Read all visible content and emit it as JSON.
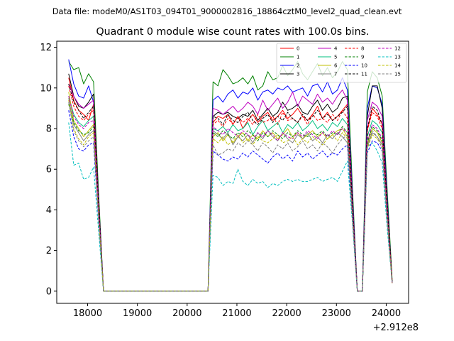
{
  "figure": {
    "suptitle": "Data file: modeM0/AS1T03_094T01_9000002816_18864cztM0_level2_quad_clean.evt",
    "offset_label": "+2.912e8"
  },
  "chart_data": {
    "type": "line",
    "title": "Quadrant 0 module wise count rates with 100.0s bins.",
    "xlabel": "",
    "ylabel": "",
    "x_offset": 291200000,
    "xlim": [
      17380,
      24450
    ],
    "ylim": [
      -0.6,
      12.3
    ],
    "xticks": [
      18000,
      19000,
      20000,
      21000,
      22000,
      23000,
      24000
    ],
    "xtick_labels": [
      "18000",
      "19000",
      "20000",
      "21000",
      "22000",
      "23000",
      "24000"
    ],
    "yticks": [
      0,
      2,
      4,
      6,
      8,
      10,
      12
    ],
    "ytick_labels": [
      "0",
      "2",
      "4",
      "6",
      "8",
      "10",
      "12"
    ],
    "grid": false,
    "legend_placement": "top-right",
    "x": [
      17620,
      17720,
      17820,
      17920,
      18020,
      18120,
      18220,
      18320,
      18420,
      18520,
      18620,
      18720,
      18820,
      18920,
      19020,
      19120,
      19220,
      19320,
      19420,
      19520,
      19620,
      19720,
      19820,
      19920,
      20020,
      20120,
      20220,
      20320,
      20420,
      20520,
      20620,
      20720,
      20820,
      20920,
      21020,
      21120,
      21220,
      21320,
      21420,
      21520,
      21620,
      21720,
      21820,
      21920,
      22020,
      22120,
      22220,
      22320,
      22420,
      22520,
      22620,
      22720,
      22820,
      22920,
      23020,
      23120,
      23220,
      23320,
      23420,
      23520,
      23620,
      23720,
      23820,
      23920,
      24020,
      24120
    ],
    "series": [
      {
        "name": "0",
        "color": "#ff0000",
        "dash": "solid",
        "values": [
          10.5,
          9.4,
          8.9,
          8.7,
          8.4,
          9.2,
          4.2,
          0,
          0,
          0,
          0,
          0,
          0,
          0,
          0,
          0,
          0,
          0,
          0,
          0,
          0,
          0,
          0,
          0,
          0,
          0,
          0,
          0,
          0,
          8.3,
          8.6,
          8.5,
          8.7,
          8.2,
          8.6,
          8.0,
          8.4,
          8.7,
          8.3,
          8.6,
          8.8,
          8.4,
          8.6,
          8.9,
          8.5,
          8.7,
          9.0,
          8.6,
          8.4,
          8.7,
          9.1,
          8.5,
          8.8,
          8.4,
          8.6,
          8.9,
          9.2,
          4.5,
          0,
          0,
          7.9,
          9.0,
          8.7,
          8.2,
          4.3,
          0.5
        ]
      },
      {
        "name": "1",
        "color": "#008000",
        "dash": "solid",
        "values": [
          11.3,
          10.9,
          11.0,
          10.2,
          10.7,
          10.3,
          4.9,
          0,
          0,
          0,
          0,
          0,
          0,
          0,
          0,
          0,
          0,
          0,
          0,
          0,
          0,
          0,
          0,
          0,
          0,
          0,
          0,
          0,
          0,
          10.3,
          10.1,
          10.9,
          10.6,
          10.2,
          10.3,
          10.5,
          10.2,
          10.6,
          9.9,
          10.1,
          10.8,
          10.4,
          10.5,
          11.1,
          10.6,
          10.9,
          11.3,
          10.7,
          10.4,
          10.8,
          11.2,
          10.6,
          11.0,
          10.5,
          10.8,
          11.3,
          10.9,
          5.2,
          0,
          0,
          9.8,
          10.8,
          10.5,
          9.6,
          5.0,
          0.6
        ]
      },
      {
        "name": "2",
        "color": "#0000ff",
        "dash": "solid",
        "values": [
          11.4,
          10.2,
          9.6,
          9.5,
          10.1,
          9.3,
          4.5,
          0,
          0,
          0,
          0,
          0,
          0,
          0,
          0,
          0,
          0,
          0,
          0,
          0,
          0,
          0,
          0,
          0,
          0,
          0,
          0,
          0,
          0,
          9.4,
          9.6,
          9.3,
          9.7,
          9.9,
          9.5,
          9.8,
          9.7,
          10.0,
          9.4,
          9.8,
          9.9,
          9.7,
          10.0,
          9.9,
          10.1,
          9.8,
          9.9,
          10.0,
          9.6,
          10.1,
          10.2,
          9.8,
          10.3,
          9.7,
          9.9,
          10.5,
          9.9,
          4.8,
          0,
          0,
          9.0,
          10.1,
          10.0,
          9.2,
          4.6,
          0.4
        ]
      },
      {
        "name": "3",
        "color": "#000000",
        "dash": "solid",
        "values": [
          10.7,
          9.6,
          9.1,
          9.0,
          9.3,
          9.7,
          4.6,
          0,
          0,
          0,
          0,
          0,
          0,
          0,
          0,
          0,
          0,
          0,
          0,
          0,
          0,
          0,
          0,
          0,
          0,
          0,
          0,
          0,
          0,
          8.6,
          8.8,
          8.7,
          8.8,
          8.6,
          8.5,
          8.7,
          8.6,
          8.9,
          8.4,
          8.7,
          9.0,
          8.6,
          8.8,
          9.3,
          8.9,
          9.0,
          9.2,
          8.8,
          8.7,
          9.1,
          9.4,
          8.9,
          9.2,
          8.8,
          9.0,
          9.5,
          9.6,
          4.6,
          0,
          0,
          8.6,
          10.1,
          10.1,
          9.0,
          4.4,
          0.5
        ]
      },
      {
        "name": "4",
        "color": "#bf00bf",
        "dash": "solid",
        "values": [
          10.2,
          9.6,
          9.2,
          9.0,
          9.2,
          9.4,
          4.4,
          0,
          0,
          0,
          0,
          0,
          0,
          0,
          0,
          0,
          0,
          0,
          0,
          0,
          0,
          0,
          0,
          0,
          0,
          0,
          0,
          0,
          0,
          9.0,
          8.9,
          8.7,
          8.9,
          9.1,
          8.8,
          9.0,
          9.3,
          9.1,
          8.7,
          9.4,
          8.9,
          9.2,
          9.5,
          9.0,
          9.3,
          9.8,
          9.1,
          9.6,
          9.4,
          9.2,
          9.7,
          9.3,
          9.5,
          9.2,
          9.6,
          9.9,
          9.4,
          4.6,
          0,
          0,
          8.4,
          9.3,
          9.1,
          8.6,
          4.3,
          0.4
        ]
      },
      {
        "name": "5",
        "color": "#00bf7f",
        "dash": "solid",
        "values": [
          9.6,
          8.7,
          8.3,
          8.1,
          8.4,
          8.6,
          4.1,
          0,
          0,
          0,
          0,
          0,
          0,
          0,
          0,
          0,
          0,
          0,
          0,
          0,
          0,
          0,
          0,
          0,
          0,
          0,
          0,
          0,
          0,
          8.0,
          7.9,
          8.1,
          7.8,
          8.2,
          7.9,
          8.0,
          8.3,
          7.7,
          8.1,
          8.4,
          7.9,
          8.1,
          8.3,
          7.8,
          8.2,
          8.0,
          8.3,
          7.9,
          8.1,
          8.4,
          8.0,
          8.2,
          7.9,
          8.3,
          8.1,
          8.5,
          8.2,
          4.1,
          0,
          0,
          7.6,
          8.4,
          8.2,
          7.8,
          3.9,
          0.4
        ]
      },
      {
        "name": "6",
        "color": "#bfbf00",
        "dash": "solid",
        "values": [
          9.8,
          8.4,
          8.0,
          7.6,
          7.9,
          8.2,
          3.9,
          0,
          0,
          0,
          0,
          0,
          0,
          0,
          0,
          0,
          0,
          0,
          0,
          0,
          0,
          0,
          0,
          0,
          0,
          0,
          0,
          0,
          0,
          7.6,
          7.8,
          7.4,
          7.7,
          7.3,
          7.6,
          7.8,
          7.4,
          7.7,
          7.5,
          7.9,
          7.6,
          7.8,
          7.5,
          7.7,
          8.0,
          7.6,
          7.8,
          7.5,
          7.7,
          7.9,
          7.6,
          7.8,
          7.5,
          7.7,
          7.9,
          8.0,
          7.6,
          3.8,
          0,
          0,
          7.2,
          8.0,
          7.8,
          7.3,
          3.7,
          0.4
        ]
      },
      {
        "name": "7",
        "color": "#808080",
        "dash": "solid",
        "values": [
          9.5,
          8.2,
          7.8,
          7.4,
          7.7,
          7.9,
          3.8,
          0,
          0,
          0,
          0,
          0,
          0,
          0,
          0,
          0,
          0,
          0,
          0,
          0,
          0,
          0,
          0,
          0,
          0,
          0,
          0,
          0,
          0,
          7.9,
          7.7,
          7.5,
          7.8,
          7.2,
          7.6,
          7.4,
          7.7,
          7.3,
          7.8,
          7.5,
          7.9,
          7.6,
          7.4,
          7.8,
          7.5,
          7.3,
          7.7,
          7.5,
          7.8,
          7.4,
          7.6,
          7.3,
          7.7,
          7.5,
          7.8,
          7.6,
          7.3,
          3.7,
          0,
          0,
          7.1,
          7.8,
          7.6,
          7.2,
          3.6,
          0.4
        ]
      },
      {
        "name": "8",
        "color": "#ff0000",
        "dash": "dashed",
        "values": [
          10.1,
          9.1,
          8.6,
          8.4,
          8.7,
          8.9,
          4.2,
          0,
          0,
          0,
          0,
          0,
          0,
          0,
          0,
          0,
          0,
          0,
          0,
          0,
          0,
          0,
          0,
          0,
          0,
          0,
          0,
          0,
          0,
          8.2,
          8.4,
          8.1,
          8.5,
          8.2,
          8.6,
          8.3,
          8.5,
          8.2,
          8.7,
          8.3,
          8.4,
          8.6,
          8.2,
          8.8,
          8.4,
          8.5,
          8.3,
          8.6,
          8.2,
          8.7,
          8.4,
          8.5,
          8.3,
          8.7,
          8.4,
          8.9,
          8.5,
          4.2,
          0,
          0,
          7.9,
          8.8,
          8.6,
          8.0,
          4.1,
          0.5
        ]
      },
      {
        "name": "9",
        "color": "#008000",
        "dash": "dashed",
        "values": [
          9.2,
          8.3,
          7.9,
          7.7,
          7.8,
          8.1,
          3.9,
          0,
          0,
          0,
          0,
          0,
          0,
          0,
          0,
          0,
          0,
          0,
          0,
          0,
          0,
          0,
          0,
          0,
          0,
          0,
          0,
          0,
          0,
          7.8,
          7.6,
          7.9,
          7.7,
          7.5,
          7.8,
          7.6,
          7.9,
          7.7,
          7.4,
          7.8,
          7.6,
          7.9,
          7.7,
          7.5,
          7.8,
          7.6,
          7.9,
          7.7,
          7.6,
          7.8,
          7.7,
          7.9,
          7.6,
          7.8,
          7.7,
          8.1,
          7.8,
          3.9,
          0,
          0,
          7.3,
          8.1,
          7.9,
          7.4,
          3.8,
          0.4
        ]
      },
      {
        "name": "10",
        "color": "#0000ff",
        "dash": "dashed",
        "values": [
          8.9,
          7.6,
          7.0,
          6.9,
          7.2,
          7.3,
          3.5,
          0,
          0,
          0,
          0,
          0,
          0,
          0,
          0,
          0,
          0,
          0,
          0,
          0,
          0,
          0,
          0,
          0,
          0,
          0,
          0,
          0,
          0,
          6.9,
          6.7,
          6.5,
          6.4,
          6.6,
          6.5,
          6.8,
          6.6,
          6.9,
          6.7,
          6.5,
          6.3,
          6.6,
          6.8,
          6.5,
          6.7,
          6.4,
          6.9,
          6.6,
          6.8,
          6.5,
          6.7,
          6.9,
          6.6,
          6.8,
          6.7,
          7.0,
          7.2,
          3.5,
          0,
          0,
          6.8,
          7.4,
          7.3,
          6.9,
          3.4,
          0.4
        ]
      },
      {
        "name": "11",
        "color": "#000000",
        "dash": "dashed",
        "values": [
          10.2,
          9.3,
          8.9,
          8.5,
          8.8,
          9.1,
          4.3,
          0,
          0,
          0,
          0,
          0,
          0,
          0,
          0,
          0,
          0,
          0,
          0,
          0,
          0,
          0,
          0,
          0,
          0,
          0,
          0,
          0,
          0,
          8.6,
          8.5,
          8.2,
          8.7,
          8.4,
          8.3,
          8.6,
          8.8,
          8.4,
          8.2,
          8.5,
          8.7,
          8.3,
          8.6,
          8.4,
          8.8,
          8.5,
          8.3,
          8.7,
          8.4,
          8.6,
          8.9,
          8.5,
          8.7,
          8.4,
          8.6,
          8.8,
          9.1,
          4.4,
          0,
          0,
          8.0,
          9.1,
          8.9,
          8.2,
          4.2,
          0.5
        ]
      },
      {
        "name": "12",
        "color": "#bf00bf",
        "dash": "dashed",
        "values": [
          9.6,
          8.6,
          8.2,
          8.0,
          8.3,
          8.4,
          4.0,
          0,
          0,
          0,
          0,
          0,
          0,
          0,
          0,
          0,
          0,
          0,
          0,
          0,
          0,
          0,
          0,
          0,
          0,
          0,
          0,
          0,
          0,
          8.1,
          7.9,
          7.7,
          8.0,
          7.8,
          7.6,
          7.9,
          7.7,
          7.5,
          7.8,
          7.6,
          7.9,
          7.7,
          7.4,
          7.8,
          7.6,
          7.5,
          7.8,
          7.6,
          7.9,
          7.7,
          7.5,
          7.8,
          7.6,
          7.9,
          7.7,
          8.0,
          7.8,
          3.9,
          0,
          0,
          7.4,
          8.2,
          8.0,
          7.5,
          3.8,
          0.4
        ]
      },
      {
        "name": "13",
        "color": "#00bfbf",
        "dash": "dashed",
        "values": [
          8.3,
          6.2,
          6.3,
          5.5,
          5.6,
          6.1,
          3.0,
          0,
          0,
          0,
          0,
          0,
          0,
          0,
          0,
          0,
          0,
          0,
          0,
          0,
          0,
          0,
          0,
          0,
          0,
          0,
          0,
          0,
          0,
          5.7,
          5.6,
          5.2,
          5.4,
          5.3,
          6.0,
          5.4,
          5.2,
          5.5,
          5.3,
          5.4,
          5.1,
          5.3,
          5.2,
          5.4,
          5.5,
          5.4,
          5.5,
          5.4,
          5.4,
          5.5,
          5.6,
          5.4,
          5.5,
          5.6,
          5.4,
          5.9,
          6.4,
          3.4,
          0,
          0,
          7.1,
          7.3,
          6.9,
          6.3,
          3.1,
          0.4
        ]
      },
      {
        "name": "14",
        "color": "#bfbf00",
        "dash": "dashed",
        "values": [
          9.4,
          8.0,
          7.5,
          7.2,
          7.6,
          7.8,
          3.7,
          0,
          0,
          0,
          0,
          0,
          0,
          0,
          0,
          0,
          0,
          0,
          0,
          0,
          0,
          0,
          0,
          0,
          0,
          0,
          0,
          0,
          0,
          7.5,
          7.3,
          7.6,
          7.2,
          7.4,
          7.7,
          7.3,
          7.5,
          7.2,
          7.6,
          7.4,
          7.3,
          7.5,
          7.7,
          7.3,
          7.4,
          7.6,
          7.2,
          7.5,
          7.3,
          7.6,
          7.4,
          7.2,
          7.5,
          7.7,
          7.4,
          7.8,
          7.5,
          3.7,
          0,
          0,
          7.0,
          7.7,
          7.5,
          7.1,
          3.6,
          0.4
        ]
      },
      {
        "name": "15",
        "color": "#808080",
        "dash": "dashed",
        "values": [
          9.3,
          7.9,
          7.4,
          7.1,
          7.4,
          7.6,
          3.6,
          0,
          0,
          0,
          0,
          0,
          0,
          0,
          0,
          0,
          0,
          0,
          0,
          0,
          0,
          0,
          0,
          0,
          0,
          0,
          0,
          0,
          0,
          7.2,
          6.7,
          6.8,
          7.0,
          6.9,
          7.3,
          7.1,
          7.4,
          7.2,
          6.9,
          7.3,
          7.1,
          6.8,
          7.2,
          7.0,
          7.3,
          6.9,
          7.1,
          7.4,
          7.0,
          7.2,
          6.9,
          7.3,
          7.1,
          6.8,
          7.2,
          7.5,
          7.7,
          3.6,
          0,
          0,
          7.1,
          7.9,
          7.6,
          7.0,
          3.5,
          0.4
        ]
      }
    ]
  }
}
